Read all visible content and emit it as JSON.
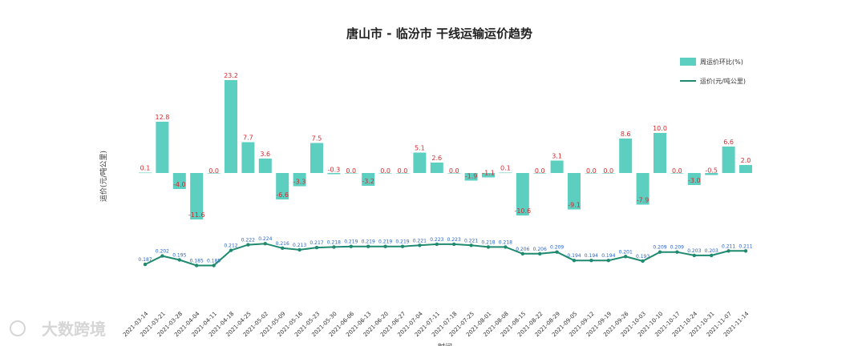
{
  "chart_data": {
    "type": "bar+line",
    "title": "唐山市 - 临汾市 干线运输运价趋势",
    "ylabel": "运价(元/吨公里)",
    "xlabel": "时间",
    "legend": {
      "position": "top-right",
      "bar_label": "周运价环比(%)",
      "line_label": "运价(元/吨公里)"
    },
    "colors": {
      "bar": "#5ccfc1",
      "line": "#1f8a70",
      "bar_label": "#d9262b",
      "line_label": "#2a64c8"
    },
    "categories": [
      "2021-03-14",
      "2021-03-21",
      "2021-03-28",
      "2021-04-04",
      "2021-04-11",
      "2021-04-18",
      "2021-04-25",
      "2021-05-02",
      "2021-05-09",
      "2021-05-16",
      "2021-05-23",
      "2021-05-30",
      "2021-06-06",
      "2021-06-13",
      "2021-06-20",
      "2021-06-27",
      "2021-07-04",
      "2021-07-11",
      "2021-07-18",
      "2021-07-25",
      "2021-08-01",
      "2021-08-08",
      "2021-08-15",
      "2021-08-22",
      "2021-08-29",
      "2021-09-05",
      "2021-09-12",
      "2021-09-19",
      "2021-09-26",
      "2021-10-03",
      "2021-10-10",
      "2021-10-17",
      "2021-10-24",
      "2021-10-31",
      "2021-11-07",
      "2021-11-14"
    ],
    "series": [
      {
        "name": "周运价环比(%)",
        "type": "bar",
        "values": [
          0.1,
          12.8,
          -4.0,
          -11.6,
          0.0,
          23.2,
          7.7,
          3.6,
          -6.6,
          -3.3,
          7.5,
          -0.3,
          0.0,
          -3.2,
          0.0,
          0.0,
          5.1,
          2.6,
          0.0,
          -1.9,
          -1.1,
          0.1,
          -10.6,
          0.0,
          3.1,
          -9.1,
          0.0,
          0.0,
          8.6,
          -7.9,
          10.0,
          0.0,
          -3.0,
          -0.5,
          6.6,
          2.0
        ],
        "labels": [
          "0.1",
          "12.8",
          "-4.0",
          "-11.6",
          "0.0",
          "23.2",
          "7.7",
          "3.6",
          "-6.6",
          "-3.3",
          "7.5",
          "-0.3",
          "0.0",
          "-3.2",
          "0.0",
          "0.0",
          "5.1",
          "2.6",
          "0.0",
          "-1.9",
          "-1.1",
          "0.1",
          "-10.6",
          "0.0",
          "3.1",
          "-9.1",
          "0.0",
          "0.0",
          "8.6",
          "-7.9",
          "10.0",
          "0.0",
          "-3.0",
          "-0.5",
          "6.6",
          "2.0"
        ]
      },
      {
        "name": "运价(元/吨公里)",
        "type": "line",
        "values": [
          0.187,
          0.202,
          0.195,
          0.185,
          0.185,
          0.212,
          0.222,
          0.224,
          0.216,
          0.213,
          0.217,
          0.218,
          0.219,
          0.219,
          0.219,
          0.219,
          0.221,
          0.223,
          0.223,
          0.221,
          0.218,
          0.218,
          0.206,
          0.206,
          0.209,
          0.194,
          0.194,
          0.194,
          0.201,
          0.193,
          0.209,
          0.209,
          0.203,
          0.203,
          0.211,
          0.211
        ],
        "labels": [
          "0.187",
          "0.202",
          "0.195",
          "0.185",
          "0.185",
          "0.212",
          "0.222",
          "0.224",
          "0.216",
          "0.213",
          "0.217",
          "0.218",
          "0.219",
          "0.219",
          "0.219",
          "0.219",
          "0.221",
          "0.223",
          "0.223",
          "0.221",
          "0.218",
          "0.218",
          "0.206",
          "0.206",
          "0.209",
          "0.194",
          "0.194",
          "0.194",
          "0.201",
          "0.193",
          "0.209",
          "0.209",
          "0.203",
          "0.203",
          "0.211",
          "0.211"
        ]
      }
    ]
  },
  "watermark": {
    "text": "大数跨境"
  }
}
